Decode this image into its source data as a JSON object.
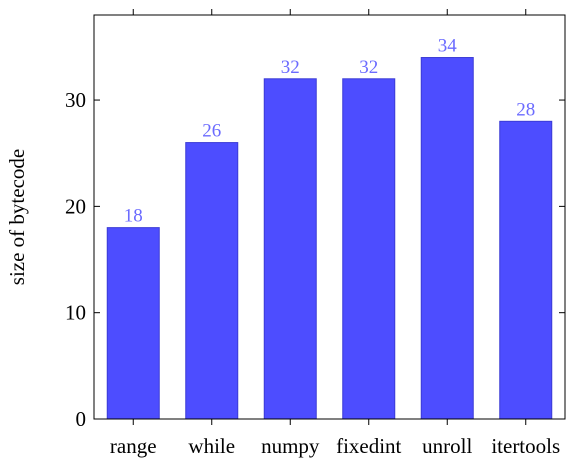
{
  "colors": {
    "bar_fill": "#4d4dff",
    "bar_stroke": "#3b3bd6",
    "data_label": "#6b6bff",
    "axis": "#000000"
  },
  "chart_data": {
    "type": "bar",
    "categories": [
      "range",
      "while",
      "numpy",
      "fixedint",
      "unroll",
      "itertools"
    ],
    "values": [
      18,
      26,
      32,
      32,
      34,
      28
    ],
    "data_labels": [
      "18",
      "26",
      "32",
      "32",
      "34",
      "28"
    ],
    "title": "",
    "xlabel": "",
    "ylabel": "size of bytecode",
    "ylim": [
      0,
      38
    ],
    "yticks": [
      0,
      10,
      20,
      30
    ],
    "ytick_labels": [
      "0",
      "10",
      "20",
      "30"
    ],
    "grid": false,
    "legend": "none"
  }
}
